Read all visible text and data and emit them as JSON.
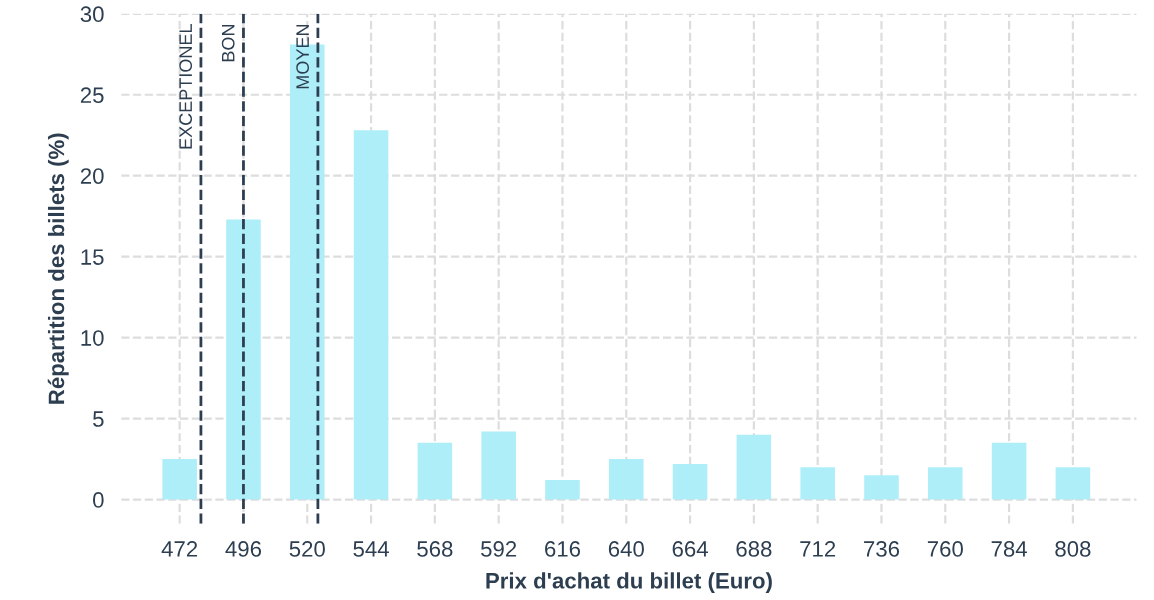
{
  "chart_data": {
    "type": "bar",
    "xlabel": "Prix d'achat du billet (Euro)",
    "ylabel": "Répartition des billets (%)",
    "x": [
      472,
      496,
      520,
      544,
      568,
      592,
      616,
      640,
      664,
      688,
      712,
      736,
      760,
      784,
      808
    ],
    "values": [
      2.5,
      17.3,
      28.1,
      22.8,
      3.5,
      4.2,
      1.2,
      2.5,
      2.2,
      4.0,
      2.0,
      1.5,
      2.0,
      3.5,
      2.0
    ],
    "color": "#aeeef8",
    "xlim": [
      450,
      832
    ],
    "xticks": [
      472,
      496,
      520,
      544,
      568,
      592,
      616,
      640,
      664,
      688,
      712,
      736,
      760,
      784,
      808
    ],
    "ylim": [
      -1.5,
      30
    ],
    "yticks": [
      0,
      5,
      10,
      15,
      20,
      25,
      30
    ],
    "grid": true,
    "ref_lines": [
      {
        "axis": "x",
        "value": 480,
        "label": "EXCEPTIONEL",
        "color": "#2d3e50",
        "line_style": "dashed"
      },
      {
        "axis": "x",
        "value": 496,
        "label": "BON",
        "color": "#2d3e50",
        "line_style": "dashed"
      },
      {
        "axis": "x",
        "value": 524,
        "label": "MOYEN",
        "color": "#2d3e50",
        "line_style": "dashed"
      }
    ]
  }
}
